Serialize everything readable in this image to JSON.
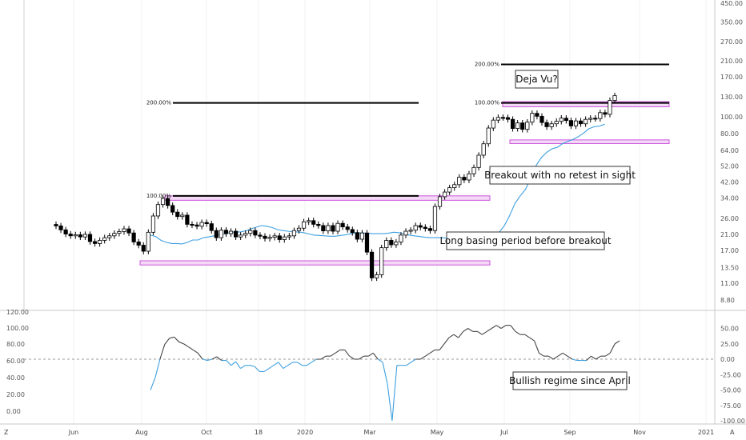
{
  "chart_data": [
    {
      "type": "candlestick",
      "title": "",
      "price_scale": "log",
      "y_ticks": [
        "450.00",
        "350.00",
        "270.00",
        "210.00",
        "170.00",
        "130.00",
        "100.00",
        "80.00",
        "64.00",
        "52.00",
        "42.00",
        "34.00",
        "26.00",
        "21.00",
        "17.00",
        "13.50",
        "11.00",
        "8.80"
      ],
      "x_ticks": [
        "Jun",
        "Aug",
        "Oct",
        "18",
        "2020",
        "Mar",
        "May",
        "Jul",
        "Sep",
        "Nov",
        "2021"
      ],
      "corner_labels": {
        "left": "Z",
        "right": "A"
      },
      "closes": [
        23.5,
        22.3,
        21.1,
        20.6,
        20.9,
        20.3,
        21.0,
        19.1,
        18.6,
        19.4,
        20.1,
        20.6,
        21.3,
        21.8,
        22.6,
        21.4,
        19.0,
        18.2,
        16.8,
        21.6,
        26.8,
        31.2,
        33.8,
        30.8,
        28.2,
        26.6,
        27.1,
        24.0,
        23.8,
        23.4,
        24.6,
        24.2,
        22.1,
        20.1,
        22.2,
        21.2,
        21.9,
        20.3,
        20.8,
        21.3,
        22.1,
        20.8,
        20.5,
        19.9,
        20.2,
        20.6,
        19.6,
        20.3,
        20.6,
        22.1,
        22.8,
        24.8,
        25.2,
        24.0,
        23.6,
        22.0,
        23.6,
        21.9,
        24.3,
        23.2,
        22.4,
        21.5,
        19.7,
        21.4,
        16.6,
        11.8,
        12.3,
        17.6,
        19.4,
        18.3,
        19.0,
        20.8,
        21.9,
        22.2,
        23.6,
        23.1,
        22.7,
        22.1,
        30.4,
        34.6,
        36.8,
        39.0,
        40.6,
        44.8,
        43.2,
        46.9,
        51.0,
        60.0,
        69.8,
        86.0,
        95.5,
        99.0,
        98.8,
        96.5,
        85.5,
        92.0,
        84.5,
        93.0,
        104.5,
        100.5,
        92.5,
        87.5,
        91.0,
        94.0,
        98.0,
        95.0,
        88.5,
        94.5,
        91.0,
        96.5,
        98.0,
        97.5,
        105.5,
        103.2,
        124.0,
        132.0
      ],
      "ma_closes": [
        20.8,
        20.4,
        19.4,
        18.9,
        18.6,
        18.6,
        18.5,
        18.9,
        19.5,
        19.5,
        20.1,
        20.3,
        20.6,
        20.9,
        21.1,
        21.5,
        21.7,
        21.7,
        22.0,
        22.6,
        23.1,
        23.6,
        23.4,
        23.0,
        22.4,
        22.1,
        21.9,
        21.7,
        21.7,
        21.5,
        21.1,
        20.8,
        20.7,
        20.6,
        20.5,
        20.5,
        20.7,
        20.9,
        21.2,
        21.5,
        21.4,
        21.3,
        21.2,
        21.2,
        21.2,
        21.3,
        21.6,
        21.5,
        21.2,
        20.8,
        20.6,
        20.4,
        20.2,
        20.1,
        20.1,
        20.1,
        20.0,
        19.7,
        19.6,
        19.4,
        19.4,
        19.3,
        19.2,
        19.5,
        20.0,
        20.6,
        21.6,
        23.6,
        27.0,
        31.7,
        35.0,
        38.2,
        44.6,
        52.4,
        58.1,
        62.3,
        65.3,
        66.6,
        70.0,
        72.1,
        74.0,
        76.7,
        80.5,
        85.2,
        87.5,
        88.4,
        90.4
      ],
      "fib_levels": [
        {
          "label": "200.00%",
          "value": 120
        },
        {
          "label": "100.00%",
          "value": 35
        },
        {
          "label": "200.00%",
          "value": 200
        },
        {
          "label": "100.00%",
          "value": 120
        }
      ],
      "zones": [
        {
          "low": 14.0,
          "high": 14.8
        },
        {
          "low": 33.0,
          "high": 35.0
        },
        {
          "low": 114,
          "high": 122
        },
        {
          "low": 70.0,
          "high": 73.5
        }
      ],
      "annotations": [
        "Deja Vu?",
        "Breakout with no retest in sight",
        "Long basing period before breakout"
      ]
    },
    {
      "type": "line",
      "title": "",
      "left_axis_ticks": [
        "120.00",
        "100.00",
        "80.00",
        "60.00",
        "40.00",
        "20.00",
        "0.00"
      ],
      "right_axis_ticks": [
        "50.00",
        "25.00",
        "0.00",
        "-25.00",
        "-50.00",
        "-75.00",
        "-100.00"
      ],
      "zero_line": 0,
      "values": [
        -50,
        -30,
        0,
        24,
        34,
        36,
        28,
        25,
        20,
        15,
        10,
        0,
        -2,
        0,
        4,
        -2,
        -2,
        -10,
        -4,
        -15,
        -10,
        -10,
        -12,
        -20,
        -20,
        -15,
        -10,
        -5,
        -15,
        -10,
        -5,
        -5,
        -10,
        -10,
        -5,
        0,
        0,
        5,
        5,
        10,
        15,
        15,
        5,
        0,
        0,
        5,
        5,
        10,
        0,
        -5,
        -40,
        -100,
        -10,
        -10,
        -10,
        -5,
        0,
        0,
        5,
        10,
        15,
        15,
        25,
        35,
        40,
        35,
        45,
        50,
        45,
        45,
        40,
        45,
        50,
        55,
        50,
        55,
        55,
        45,
        40,
        40,
        35,
        30,
        10,
        5,
        5,
        0,
        5,
        10,
        5,
        0,
        -2,
        -2,
        -2,
        5,
        0,
        5,
        5,
        10,
        25,
        30
      ],
      "series": [
        {
          "name": "",
          "colors": {
            "above": "#444444",
            "below": "#3ea0e0"
          }
        }
      ],
      "annotations": [
        "Bullish regime since April"
      ]
    }
  ]
}
